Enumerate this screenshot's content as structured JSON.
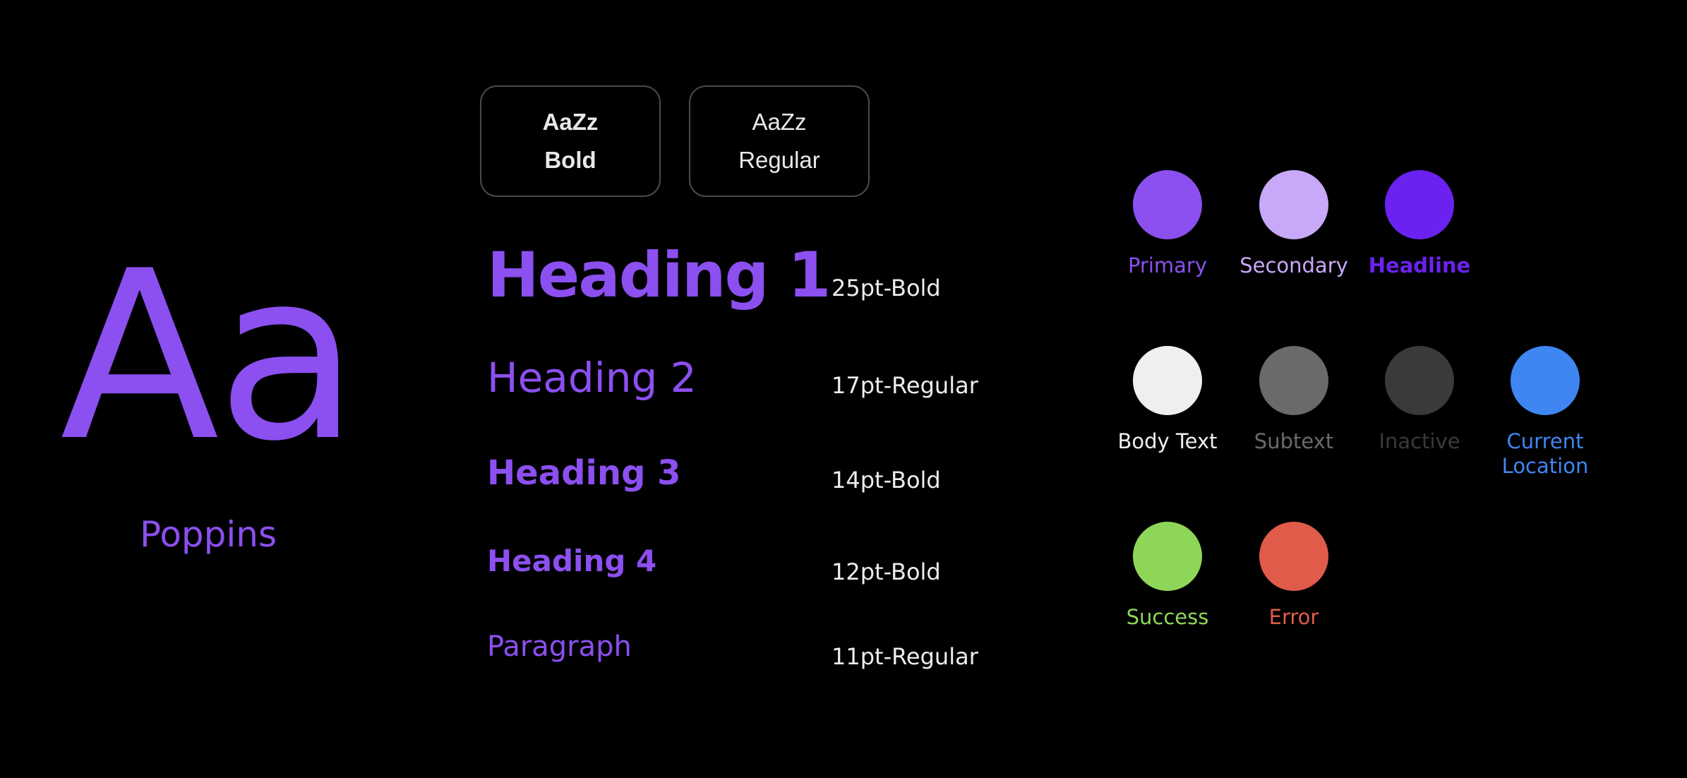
{
  "typeface": {
    "specimen": "Aa",
    "name": "Poppins",
    "accent_color": "#8c4ff0"
  },
  "weights": [
    {
      "sample": "AaZz",
      "label": "Bold"
    },
    {
      "sample": "AaZz",
      "label": "Regular"
    }
  ],
  "type_scale": [
    {
      "label": "Heading 1",
      "spec": "25pt-Bold"
    },
    {
      "label": "Heading 2",
      "spec": "17pt-Regular"
    },
    {
      "label": "Heading 3",
      "spec": "14pt-Bold"
    },
    {
      "label": "Heading 4",
      "spec": "12pt-Bold"
    },
    {
      "label": "Paragraph",
      "spec": "11pt-Regular"
    }
  ],
  "colors": [
    {
      "name": "Primary",
      "swatch": "#8c4ff0",
      "text_color": "#8c4ff0",
      "bold": false
    },
    {
      "name": "Secondary",
      "swatch": "#c8a8f8",
      "text_color": "#c8a8f8",
      "bold": false
    },
    {
      "name": "Headline",
      "swatch": "#6b22f0",
      "text_color": "#6b22f0",
      "bold": true
    },
    {
      "name": "Body Text",
      "swatch": "#efefef",
      "text_color": "#efefef",
      "bold": false
    },
    {
      "name": "Subtext",
      "swatch": "#6a6a6a",
      "text_color": "#6a6a6a",
      "bold": false
    },
    {
      "name": "Inactive",
      "swatch": "#3a3a3a",
      "text_color": "#3a3a3a",
      "bold": false
    },
    {
      "name": "Current\nLocation",
      "swatch": "#3f86f2",
      "text_color": "#3f86f2",
      "bold": false
    },
    {
      "name": "Success",
      "swatch": "#8ed658",
      "text_color": "#8ed658",
      "bold": false
    },
    {
      "name": "Error",
      "swatch": "#e05b4a",
      "text_color": "#e05b4a",
      "bold": false
    }
  ]
}
